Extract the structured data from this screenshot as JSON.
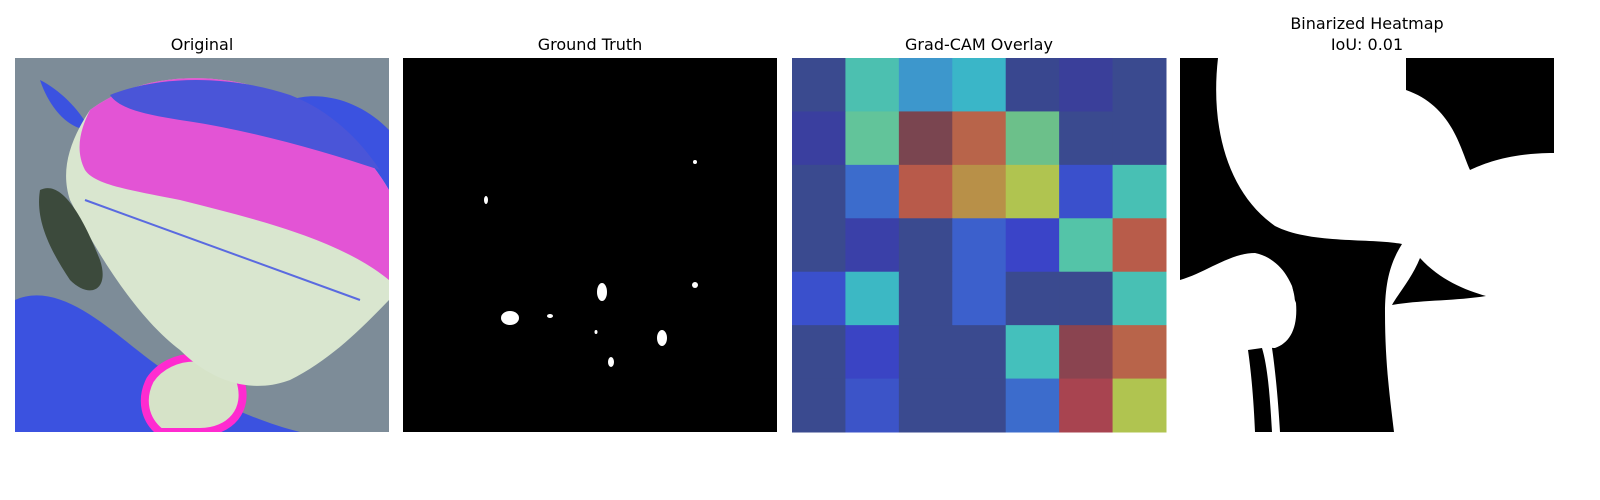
{
  "panels": [
    {
      "title": "Original"
    },
    {
      "title": "Ground Truth"
    },
    {
      "title": "Grad-CAM Overlay"
    },
    {
      "title": "Binarized Heatmap",
      "subtitle": "IoU: 0.01"
    }
  ]
}
